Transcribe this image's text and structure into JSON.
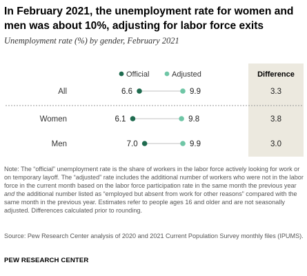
{
  "title": "In February 2021, the unemployment rate for women and men was about 10%, adjusting for labor force exits",
  "subtitle": "Unemployment rate (%) by gender, February 2021",
  "chart_data": {
    "type": "dot-plot",
    "categories": [
      "All",
      "Women",
      "Men"
    ],
    "series": [
      {
        "name": "Official",
        "color": "#1f6b4f",
        "values": [
          6.6,
          6.1,
          7.0
        ]
      },
      {
        "name": "Adjusted",
        "color": "#6fc6a6",
        "values": [
          9.9,
          9.8,
          9.9
        ]
      }
    ],
    "difference": {
      "header": "Difference",
      "values": [
        "3.3",
        "3.8",
        "3.0"
      ]
    },
    "value_labels": {
      "official": [
        "6.6",
        "6.1",
        "7.0"
      ],
      "adjusted": [
        "9.9",
        "9.8",
        "9.9"
      ]
    },
    "legend_position": "top",
    "grid": false
  },
  "note_prefix": "Note: The “official” unemployment rate is the share of workers in the labor force actively looking for work or on temporary layoff. The “adjusted” rate includes the additional number of workers who were not in the labor force in the current month based on the labor force participation rate in the same month the previous year ",
  "note_emph": "and",
  "note_suffix": " the additional number listed as “employed but absent from work for other reasons” compared with the same month in the previous year. Estimates refer to people ages 16 and older and are not seasonally adjusted. Differences calculated prior to rounding.",
  "source": "Source: Pew Research Center analysis of 2020 and 2021 Current Population Survey monthly files (IPUMS).",
  "brand": "PEW RESEARCH CENTER"
}
